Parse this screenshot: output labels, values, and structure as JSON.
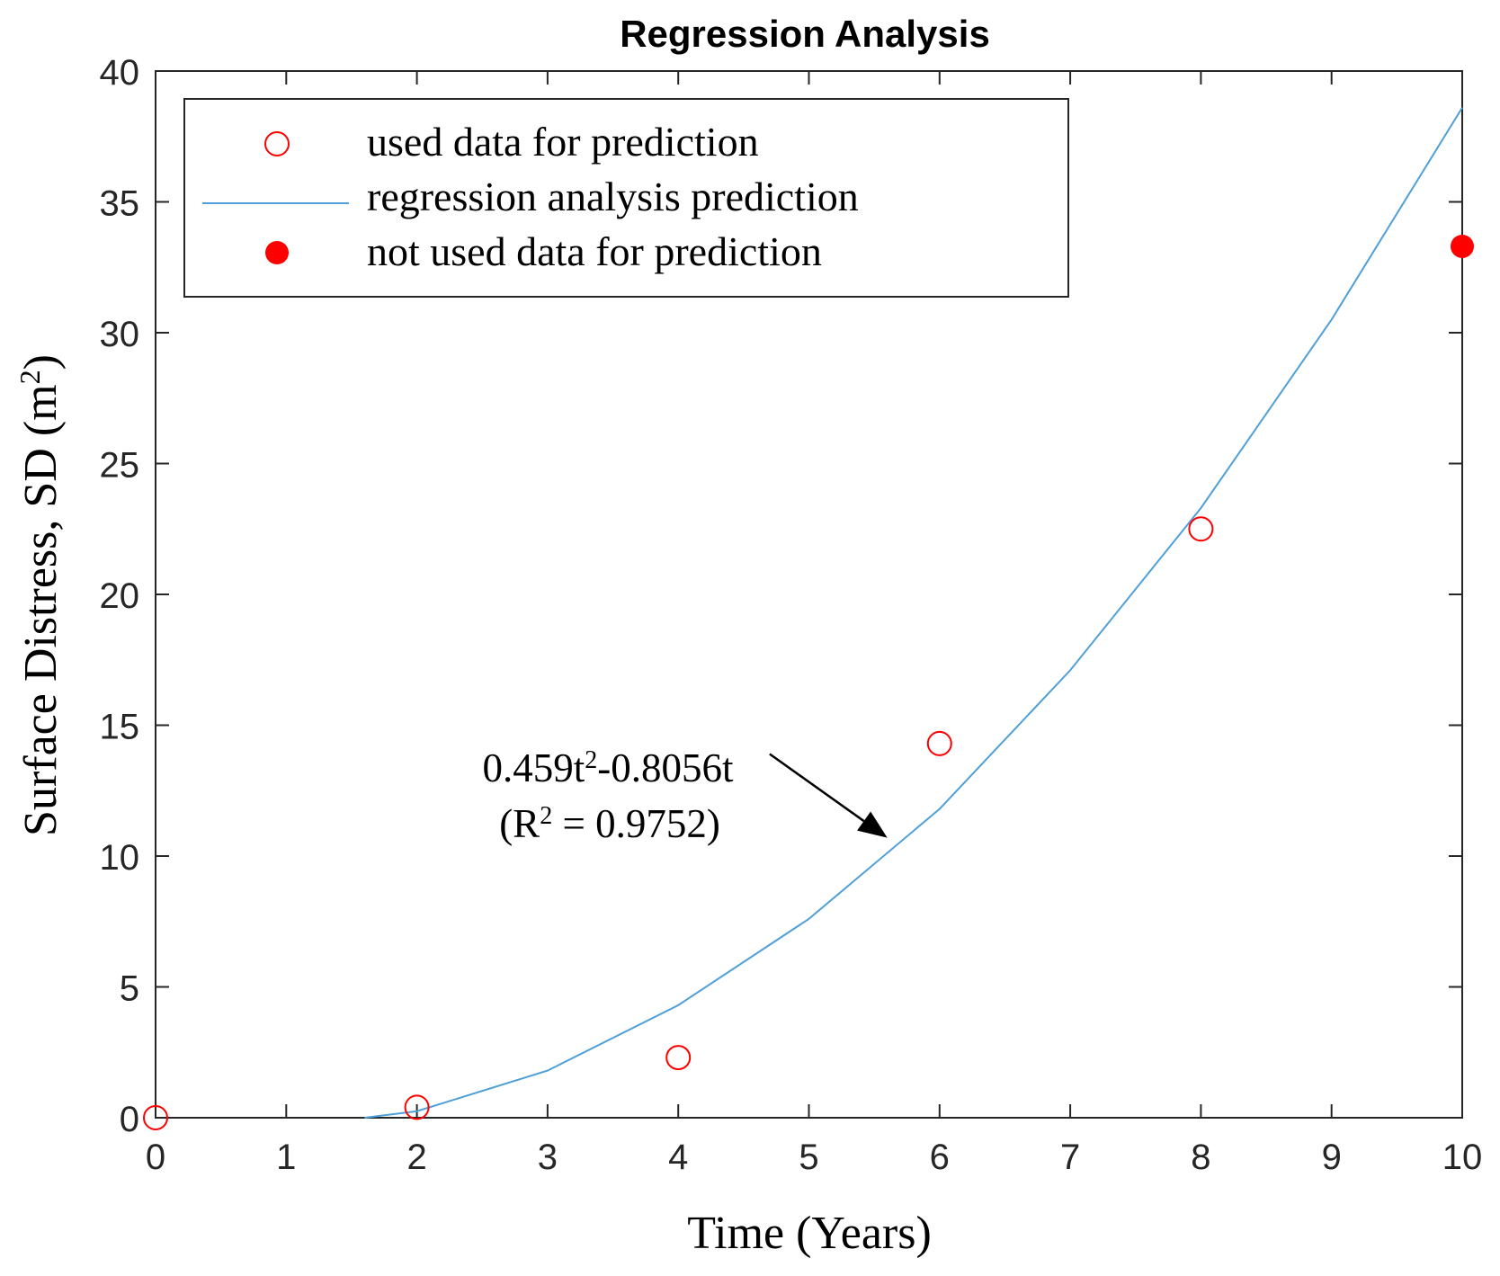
{
  "chart_data": {
    "type": "scatter",
    "title": "Regression Analysis",
    "xlabel": "Time (Years)",
    "ylabel": "Surface Distress, SD (m",
    "ylabel_superscript": "2",
    "ylabel_suffix": ")",
    "xlim": [
      0,
      10
    ],
    "ylim": [
      0,
      40
    ],
    "x_ticks": [
      0,
      1,
      2,
      3,
      4,
      5,
      6,
      7,
      8,
      9,
      10
    ],
    "y_ticks": [
      0,
      5,
      10,
      15,
      20,
      25,
      30,
      35,
      40
    ],
    "grid": false,
    "legend_position": "top-left",
    "series": [
      {
        "name": "used data for prediction",
        "kind": "scatter-open",
        "color": "#ff0000",
        "points": [
          [
            0,
            0
          ],
          [
            2,
            0.4
          ],
          [
            4,
            2.3
          ],
          [
            6,
            14.3
          ],
          [
            8,
            22.5
          ]
        ]
      },
      {
        "name": "regression analysis prediction",
        "kind": "line",
        "color": "#4f9fd8",
        "points": [
          [
            1.6,
            0.0
          ],
          [
            2,
            0.25
          ],
          [
            3,
            1.8
          ],
          [
            4,
            4.3
          ],
          [
            5,
            7.6
          ],
          [
            6,
            11.8
          ],
          [
            7,
            17.1
          ],
          [
            8,
            23.3
          ],
          [
            9,
            30.5
          ],
          [
            10,
            38.6
          ]
        ]
      },
      {
        "name": "not used data for prediction",
        "kind": "scatter-filled",
        "color": "#ff0000",
        "points": [
          [
            10,
            33.3
          ]
        ]
      }
    ],
    "annotation": {
      "equation_base": "0.459t",
      "equation_exp": "2",
      "equation_tail": "-0.8056t",
      "r2_prefix": "(R",
      "r2_exp": "2",
      "r2_tail": " = 0.9752)",
      "arrow_from": [
        4.7,
        13.9
      ],
      "arrow_to": [
        5.6,
        10.7
      ]
    }
  },
  "colors": {
    "axis": "#262626",
    "marker": "#ff0000",
    "line": "#4f9fd8"
  }
}
